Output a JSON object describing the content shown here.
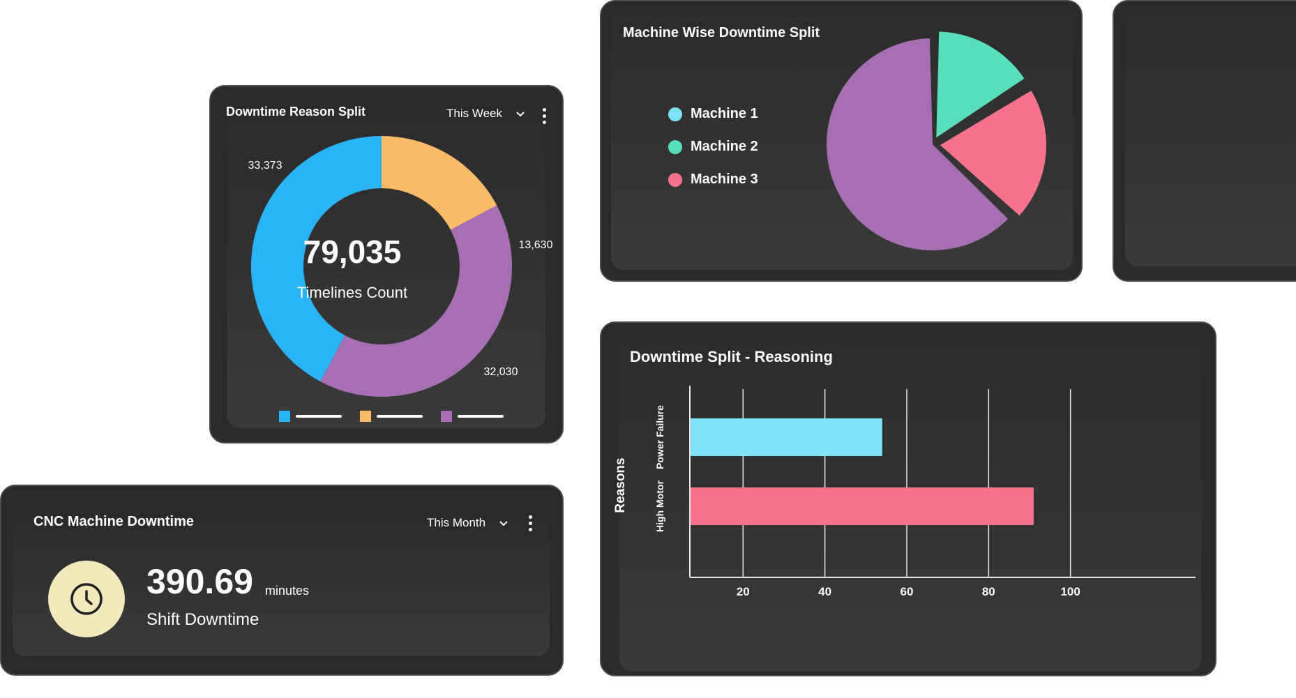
{
  "reason_split": {
    "title": "Downtime Reason Split",
    "period": "This Week",
    "center_value": "79,035",
    "center_label": "Timelines Count",
    "colors": [
      "#2bb4f5",
      "#f9bb68",
      "#a56fb2"
    ],
    "chart_data": {
      "type": "pie",
      "variant": "donut",
      "title": "Downtime Reason Split",
      "labels": [
        "33,373",
        "13,630",
        "32,030"
      ],
      "values": [
        33373,
        13630,
        32030
      ],
      "legend": "bottom"
    }
  },
  "machine_split": {
    "title": "Machine Wise Downtime Split",
    "legend": [
      {
        "label": "Machine 1",
        "color": "#7fe3f8"
      },
      {
        "label": "Machine 2",
        "color": "#58dfb9"
      },
      {
        "label": "Machine 3",
        "color": "#f5738b"
      }
    ],
    "chart_data": {
      "type": "pie",
      "title": "Machine Wise Downtime Split",
      "categories": [
        "Machine 1",
        "Machine 2",
        "Machine 3"
      ],
      "values": [
        0,
        16,
        21
      ],
      "other_slice": {
        "color": "#a56fb2",
        "value": 63
      },
      "legend": "left"
    }
  },
  "cnc": {
    "title": "CNC Machine Downtime",
    "period": "This Month",
    "value": "390.69",
    "unit": "minutes",
    "label": "Shift Downtime",
    "icon": "clock-icon"
  },
  "reasoning": {
    "title": "Downtime Split - Reasoning",
    "colors": [
      "#7fe3f8",
      "#f5738b"
    ],
    "chart_data": {
      "type": "bar",
      "orientation": "horizontal",
      "title": "Downtime Split - Reasoning",
      "ylabel": "Reasons",
      "categories": [
        "Power Failure",
        "High Motor"
      ],
      "values": [
        54,
        91
      ],
      "xticks": [
        "20",
        "40",
        "60",
        "80",
        "100"
      ],
      "xlim": [
        7,
        105
      ],
      "grid": true
    }
  }
}
